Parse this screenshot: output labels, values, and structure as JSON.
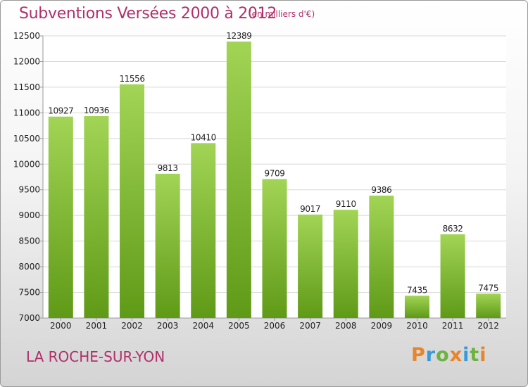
{
  "header": {
    "title": "Subventions Versées 2000 à 2012",
    "subtitle": "(en milliers d'€)"
  },
  "footer": {
    "city": "LA ROCHE-SUR-YON",
    "logo_text": "Proxiti",
    "logo_colors": [
      "#e8842a",
      "#3a9ad9",
      "#6cb33f",
      "#e8842a",
      "#3a9ad9",
      "#6cb33f",
      "#e8842a"
    ]
  },
  "colors": {
    "title": "#b0306a",
    "bar_top": "#a2d455",
    "bar_bottom": "#5f9a17",
    "grid": "#d8d8d8",
    "axis": "#999999"
  },
  "chart_data": {
    "type": "bar",
    "title": "Subventions Versées 2000 à 2012",
    "subtitle": "(en milliers d'€)",
    "categories": [
      "2000",
      "2001",
      "2002",
      "2003",
      "2004",
      "2005",
      "2006",
      "2007",
      "2008",
      "2009",
      "2010",
      "2011",
      "2012"
    ],
    "values": [
      10927,
      10936,
      11556,
      9813,
      10410,
      12389,
      9709,
      9017,
      9110,
      9386,
      7435,
      8632,
      7475
    ],
    "ylim": [
      7000,
      12500
    ],
    "yticks": [
      7000,
      7500,
      8000,
      8500,
      9000,
      9500,
      10000,
      10500,
      11000,
      11500,
      12000,
      12500
    ],
    "grid": true,
    "data_labels": true
  }
}
